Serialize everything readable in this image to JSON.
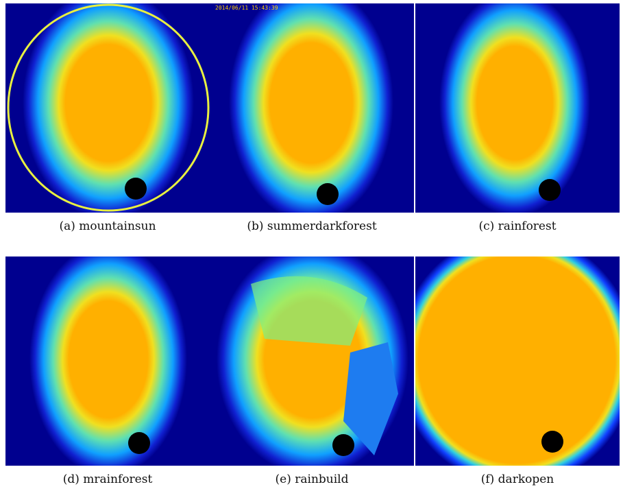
{
  "figure": {
    "panels": [
      {
        "caption": "(a) mountainsun"
      },
      {
        "caption": "(b) summerdarkforest",
        "timestamp": "2014/06/11 15:43:39"
      },
      {
        "caption": "(c) rainforest"
      },
      {
        "caption": "(d) mrainforest"
      },
      {
        "caption": "(e) rainbuild"
      },
      {
        "caption": "(f) darkopen"
      }
    ]
  }
}
